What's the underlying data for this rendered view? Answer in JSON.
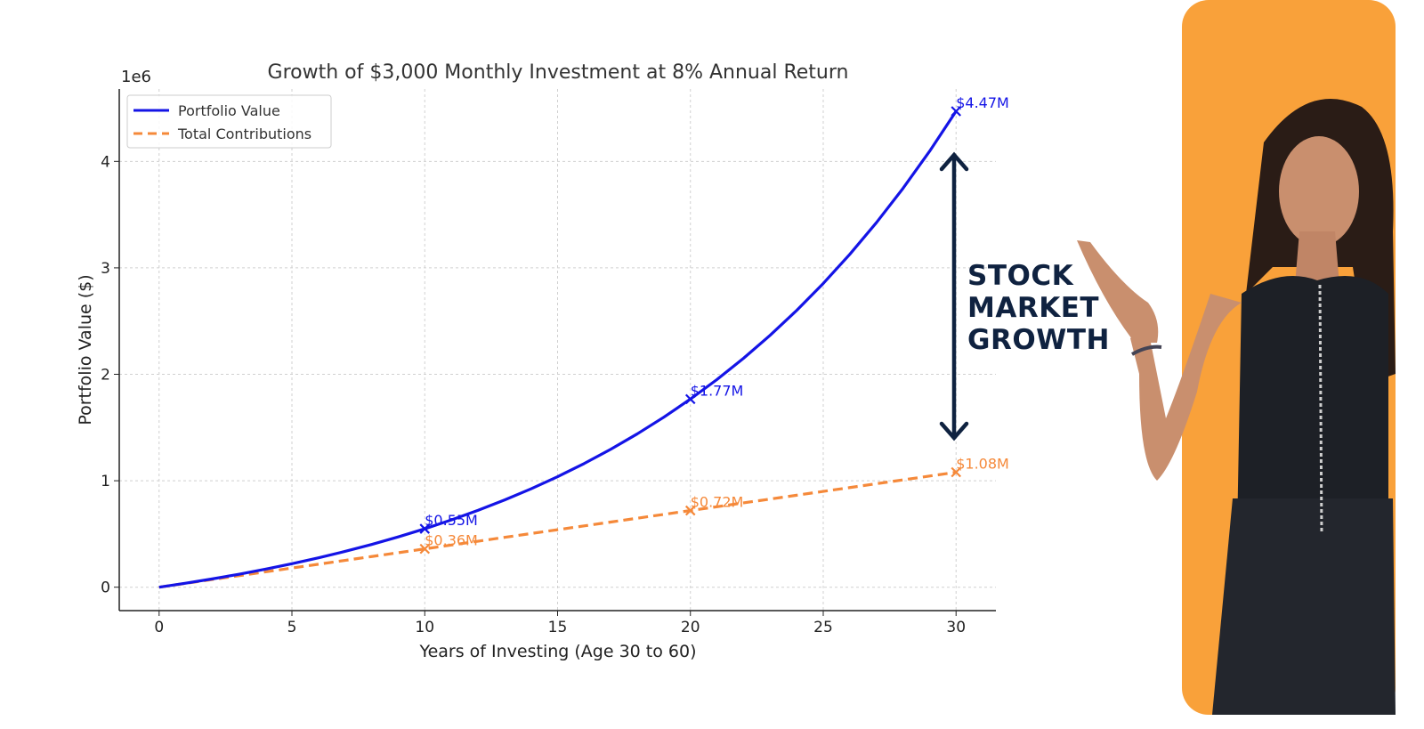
{
  "chart_data": {
    "type": "line",
    "title": "Growth of $3,000 Monthly Investment at 8% Annual Return",
    "xlabel": "Years of Investing (Age 30 to 60)",
    "ylabel": "Portfolio Value ($)",
    "y_offset_label": "1e6",
    "xlim": [
      -1.5,
      31.5
    ],
    "ylim": [
      -220000,
      4680000
    ],
    "xticks": [
      0,
      5,
      10,
      15,
      20,
      25,
      30
    ],
    "yticks": [
      0,
      1000000,
      2000000,
      3000000,
      4000000
    ],
    "ytick_labels": [
      "0",
      "1",
      "2",
      "3",
      "4"
    ],
    "grid": true,
    "legend_position": "top-left",
    "x": [
      0,
      1,
      2,
      3,
      4,
      5,
      6,
      7,
      8,
      9,
      10,
      11,
      12,
      13,
      14,
      15,
      16,
      17,
      18,
      19,
      20,
      21,
      22,
      23,
      24,
      25,
      26,
      27,
      28,
      29,
      30
    ],
    "series": [
      {
        "name": "Portfolio Value",
        "color": "#1414e6",
        "style": "solid",
        "values": [
          0,
          37350,
          77800,
          121600,
          169100,
          220400,
          276100,
          336300,
          401600,
          472300,
          548800,
          631700,
          721500,
          818800,
          924100,
          1038100,
          1161600,
          1295400,
          1440300,
          1597200,
          1767100,
          1951100,
          2150400,
          2366200,
          2600000,
          2853100,
          3127300,
          3424200,
          3745800,
          4094000,
          4471200
        ]
      },
      {
        "name": "Total Contributions",
        "color": "#f5893a",
        "style": "dashed",
        "values": [
          0,
          36000,
          72000,
          108000,
          144000,
          180000,
          216000,
          252000,
          288000,
          324000,
          360000,
          396000,
          432000,
          468000,
          504000,
          540000,
          576000,
          612000,
          648000,
          684000,
          720000,
          756000,
          792000,
          828000,
          864000,
          900000,
          936000,
          972000,
          1008000,
          1044000,
          1080000
        ]
      }
    ],
    "annotations": [
      {
        "series": 0,
        "x": 10,
        "y": 548800,
        "label": "$0.55M"
      },
      {
        "series": 0,
        "x": 20,
        "y": 1767100,
        "label": "$1.77M"
      },
      {
        "series": 0,
        "x": 30,
        "y": 4471200,
        "label": "$4.47M"
      },
      {
        "series": 1,
        "x": 10,
        "y": 360000,
        "label": "$0.36M"
      },
      {
        "series": 1,
        "x": 20,
        "y": 720000,
        "label": "$0.72M"
      },
      {
        "series": 1,
        "x": 30,
        "y": 1080000,
        "label": "$1.08M"
      }
    ]
  },
  "overlay": {
    "headline": [
      "STOCK",
      "MARKET",
      "GROWTH"
    ],
    "arrow_color": "#0f2240",
    "panel_color": "#f9a13a"
  }
}
